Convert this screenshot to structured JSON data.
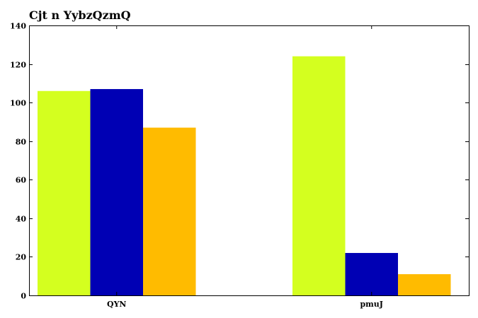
{
  "chart_data": {
    "type": "bar",
    "title": "Cjt n YybzQzmQ",
    "xlabel": "",
    "ylabel": "",
    "categories": [
      "QYN",
      "pmuJ"
    ],
    "series": [
      {
        "values": [
          106,
          124
        ],
        "color": "#d4ff1f"
      },
      {
        "values": [
          107,
          22
        ],
        "color": "#0000b4"
      },
      {
        "values": [
          87,
          11
        ],
        "color": "#ffbb00"
      }
    ],
    "ylim": [
      0,
      140
    ],
    "yticks": [
      0,
      20,
      40,
      60,
      80,
      100,
      120,
      140
    ],
    "grid": false,
    "legend": "none"
  }
}
